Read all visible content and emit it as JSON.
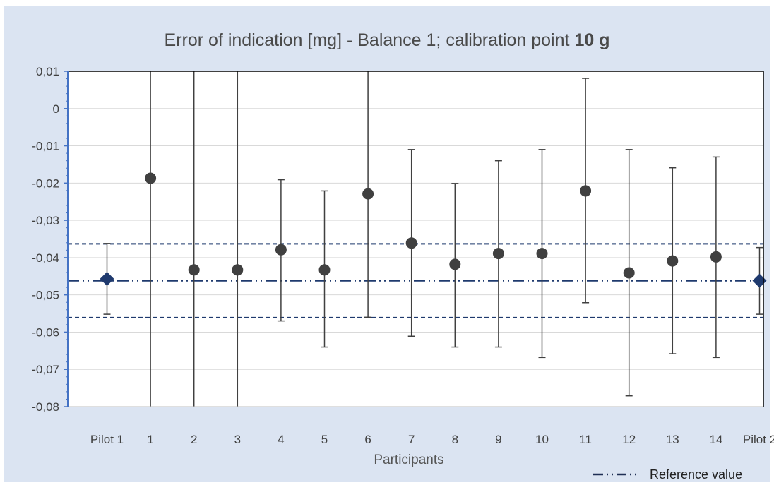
{
  "chart_data": {
    "type": "scatter",
    "title": "Error of indication [mg] - Balance 1;  calibration point",
    "title_emphasis": "10 g",
    "xlabel": "Participants",
    "ylabel": "",
    "ylim": [
      -0.08,
      0.01
    ],
    "yticks": [
      "0,01",
      "0",
      "-0,01",
      "-0,02",
      "-0,03",
      "-0,04",
      "-0,05",
      "-0,06",
      "-0,07",
      "-0,08"
    ],
    "ytick_values": [
      0.01,
      0,
      -0.01,
      -0.02,
      -0.03,
      -0.04,
      -0.05,
      -0.06,
      -0.07,
      -0.08
    ],
    "categories": [
      "Pilot 1",
      "1",
      "2",
      "3",
      "4",
      "5",
      "6",
      "7",
      "8",
      "9",
      "10",
      "11",
      "12",
      "13",
      "14",
      "Pilot 2"
    ],
    "series": [
      {
        "marker": "diamond",
        "color": "#1f3a6e",
        "points": [
          {
            "category": "Pilot 1",
            "y": -0.0457,
            "low": -0.0552,
            "high": -0.0362
          },
          {
            "category": "Pilot 2",
            "y": -0.0462,
            "low": -0.0552,
            "high": -0.0373
          }
        ]
      },
      {
        "marker": "circle",
        "color": "#404040",
        "points": [
          {
            "category": "1",
            "y": -0.0187,
            "low": -0.08,
            "high": 0.01
          },
          {
            "category": "2",
            "y": -0.0433,
            "low": -0.08,
            "high": 0.01
          },
          {
            "category": "3",
            "y": -0.0433,
            "low": -0.08,
            "high": 0.01
          },
          {
            "category": "4",
            "y": -0.0379,
            "low": -0.057,
            "high": -0.0191
          },
          {
            "category": "5",
            "y": -0.0433,
            "low": -0.064,
            "high": -0.0221
          },
          {
            "category": "6",
            "y": -0.0229,
            "low": -0.056,
            "high": 0.01
          },
          {
            "category": "7",
            "y": -0.0361,
            "low": -0.0611,
            "high": -0.011
          },
          {
            "category": "8",
            "y": -0.0418,
            "low": -0.064,
            "high": -0.0201
          },
          {
            "category": "9",
            "y": -0.0389,
            "low": -0.064,
            "high": -0.014
          },
          {
            "category": "10",
            "y": -0.0389,
            "low": -0.0668,
            "high": -0.011
          },
          {
            "category": "11",
            "y": -0.0221,
            "low": -0.0521,
            "high": 0.0081
          },
          {
            "category": "12",
            "y": -0.0441,
            "low": -0.0771,
            "high": -0.011
          },
          {
            "category": "13",
            "y": -0.0409,
            "low": -0.0658,
            "high": -0.0159
          },
          {
            "category": "14",
            "y": -0.0398,
            "low": -0.0668,
            "high": -0.013
          }
        ]
      }
    ],
    "reference": {
      "name": "Reference value",
      "value": -0.0462,
      "upper": -0.0363,
      "lower": -0.0561,
      "color": "#1f3a6e"
    },
    "grid": true,
    "legend_position": "bottom-right"
  }
}
